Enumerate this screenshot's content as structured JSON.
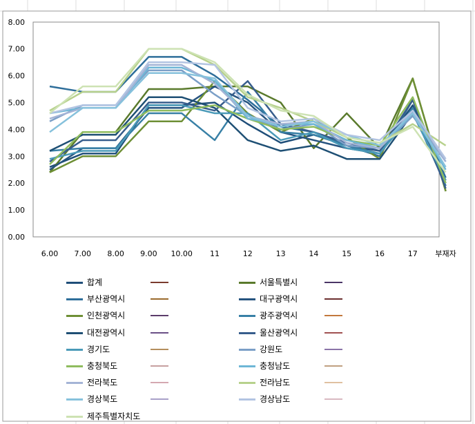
{
  "chart_data": {
    "type": "line",
    "categories": [
      "6.00",
      "7.00",
      "8.00",
      "9.00",
      "10.00",
      "11",
      "12",
      "13",
      "14",
      "15",
      "16",
      "17",
      "부재자"
    ],
    "ylim": [
      0,
      8
    ],
    "yticks": [
      "0.00",
      "1.00",
      "2.00",
      "3.00",
      "4.00",
      "5.00",
      "6.00",
      "7.00",
      "8.00"
    ],
    "grid": false,
    "legend_position": "bottom",
    "series": [
      {
        "name": "합계",
        "color": "#1f4e79",
        "values": [
          2.6,
          3.1,
          3.1,
          4.9,
          4.9,
          5.0,
          4.2,
          3.5,
          3.8,
          3.4,
          3.2,
          4.9,
          2.0
        ]
      },
      {
        "name": "서울특별시",
        "color": "#5a7a2c",
        "values": [
          2.4,
          3.9,
          3.9,
          5.5,
          5.5,
          5.6,
          5.6,
          5.0,
          3.3,
          4.6,
          3.3,
          5.9,
          1.7
        ]
      },
      {
        "name": "부산광역시",
        "color": "#2e6e9a",
        "values": [
          5.6,
          5.4,
          5.4,
          6.7,
          6.7,
          6.0,
          5.1,
          4.1,
          3.9,
          3.4,
          3.0,
          5.1,
          2.2
        ]
      },
      {
        "name": "대구광역시",
        "color": "#26537f",
        "values": [
          2.5,
          3.3,
          3.3,
          4.8,
          4.8,
          5.6,
          5.0,
          3.9,
          3.6,
          3.3,
          3.1,
          4.7,
          1.9
        ]
      },
      {
        "name": "인천광역시",
        "color": "#6e8f35",
        "values": [
          2.4,
          3.0,
          3.0,
          4.3,
          4.3,
          5.8,
          4.6,
          3.9,
          4.4,
          3.7,
          2.9,
          5.9,
          1.7
        ]
      },
      {
        "name": "광주광역시",
        "color": "#3880a6",
        "values": [
          3.2,
          3.3,
          3.3,
          4.6,
          4.6,
          3.6,
          5.4,
          3.9,
          3.8,
          3.4,
          3.1,
          4.8,
          1.9
        ]
      },
      {
        "name": "대전광역시",
        "color": "#1e4f74",
        "values": [
          3.2,
          3.8,
          3.8,
          5.2,
          5.2,
          4.8,
          3.6,
          3.2,
          3.4,
          2.9,
          2.9,
          4.6,
          2.1
        ]
      },
      {
        "name": "울산광역시",
        "color": "#375d8c",
        "values": [
          2.8,
          3.6,
          3.6,
          5.0,
          5.0,
          4.7,
          5.8,
          4.2,
          3.9,
          3.5,
          3.2,
          5.1,
          1.8
        ]
      },
      {
        "name": "경기도",
        "color": "#4a9ab8",
        "values": [
          2.9,
          3.2,
          3.2,
          4.9,
          4.9,
          4.6,
          4.6,
          3.6,
          3.9,
          3.3,
          3.1,
          4.6,
          2.1
        ]
      },
      {
        "name": "강원도",
        "color": "#7b9fc7",
        "values": [
          4.3,
          4.9,
          4.9,
          6.2,
          6.2,
          5.3,
          4.5,
          4.0,
          4.2,
          3.4,
          3.3,
          4.5,
          2.8
        ]
      },
      {
        "name": "충청북도",
        "color": "#8fbc5e",
        "values": [
          2.7,
          3.9,
          3.9,
          4.7,
          4.7,
          4.9,
          4.4,
          4.0,
          4.1,
          3.6,
          3.4,
          5.2,
          2.0
        ]
      },
      {
        "name": "충청남도",
        "color": "#6eb6d6",
        "values": [
          4.6,
          4.8,
          4.8,
          6.3,
          6.3,
          5.8,
          4.4,
          4.2,
          4.2,
          3.6,
          3.3,
          4.6,
          2.5
        ]
      },
      {
        "name": "전라북도",
        "color": "#a4b4d6",
        "values": [
          4.4,
          4.8,
          4.8,
          6.4,
          6.4,
          5.7,
          4.5,
          4.2,
          4.3,
          3.5,
          3.3,
          4.7,
          2.8
        ]
      },
      {
        "name": "전라남도",
        "color": "#b7d18c",
        "values": [
          4.7,
          5.4,
          5.4,
          7.0,
          7.0,
          6.4,
          5.2,
          4.8,
          4.3,
          3.7,
          3.5,
          4.2,
          3.4
        ]
      },
      {
        "name": "경상북도",
        "color": "#86c1dc",
        "values": [
          3.9,
          4.8,
          4.8,
          6.1,
          6.1,
          5.9,
          4.5,
          4.1,
          4.3,
          3.8,
          3.4,
          4.6,
          2.6
        ]
      },
      {
        "name": "경상남도",
        "color": "#b2c4e2",
        "values": [
          4.6,
          4.9,
          4.9,
          6.5,
          6.5,
          6.4,
          4.8,
          4.3,
          4.4,
          3.8,
          3.6,
          4.7,
          2.9
        ]
      },
      {
        "name": "제주특별자치도",
        "color": "#cde2b3",
        "values": [
          4.6,
          5.6,
          5.6,
          7.0,
          7.0,
          6.5,
          5.3,
          4.7,
          4.5,
          3.7,
          3.5,
          4.1,
          2.4
        ]
      }
    ]
  }
}
